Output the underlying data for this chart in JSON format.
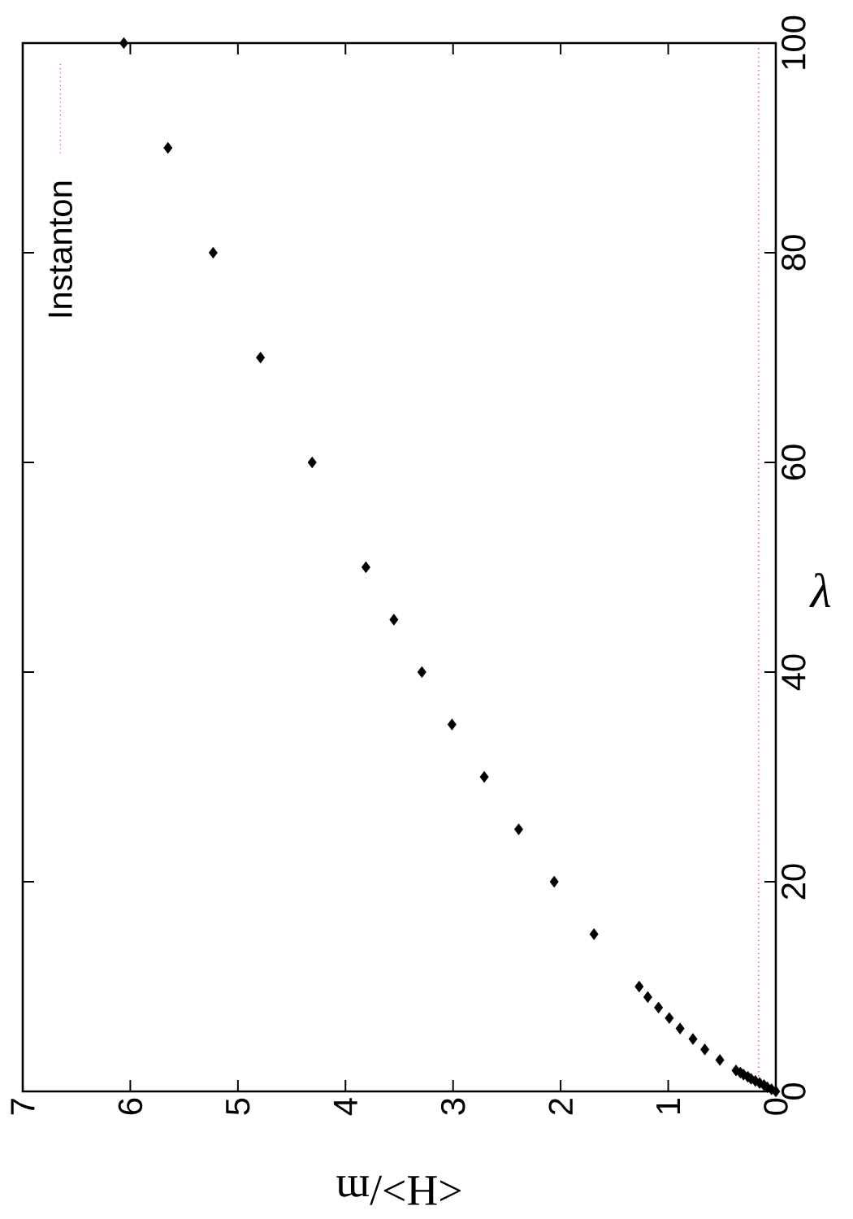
{
  "chart_data": {
    "type": "scatter",
    "xlabel": "<H>/m",
    "ylabel": "λ",
    "xlim": [
      7,
      0
    ],
    "ylim": [
      0,
      100
    ],
    "xticks": [
      0,
      1,
      2,
      3,
      4,
      5,
      6,
      7
    ],
    "yticks": [
      0,
      20,
      40,
      60,
      80,
      100
    ],
    "legend": "top left",
    "marker": "diamond",
    "series": [
      {
        "color": "#000000",
        "x": [
          0,
          0.04,
          0.08,
          0.11,
          0.15,
          0.19,
          0.23,
          0.26,
          0.3,
          0.33,
          0.37,
          0.52,
          0.66,
          0.77,
          0.89,
          0.99,
          1.09,
          1.19,
          1.27,
          1.69,
          2.06,
          2.39,
          2.71,
          3.01,
          3.29,
          3.55,
          3.81,
          4.31,
          4.79,
          5.23,
          5.65,
          6.06
        ],
        "values": [
          0,
          0.2,
          0.4,
          0.6,
          0.8,
          1.0,
          1.2,
          1.4,
          1.6,
          1.8,
          2,
          3,
          4,
          5,
          6,
          7,
          8,
          9,
          10,
          15,
          20,
          25,
          30,
          35,
          40,
          45,
          50,
          60,
          70,
          80,
          90,
          100
        ]
      },
      {
        "type": "line",
        "name": "Instanton",
        "color": "#ff4050",
        "line_style": "dotted",
        "marker": "none",
        "x": [
          0.16,
          0.16
        ],
        "values": [
          1,
          100
        ]
      }
    ]
  }
}
